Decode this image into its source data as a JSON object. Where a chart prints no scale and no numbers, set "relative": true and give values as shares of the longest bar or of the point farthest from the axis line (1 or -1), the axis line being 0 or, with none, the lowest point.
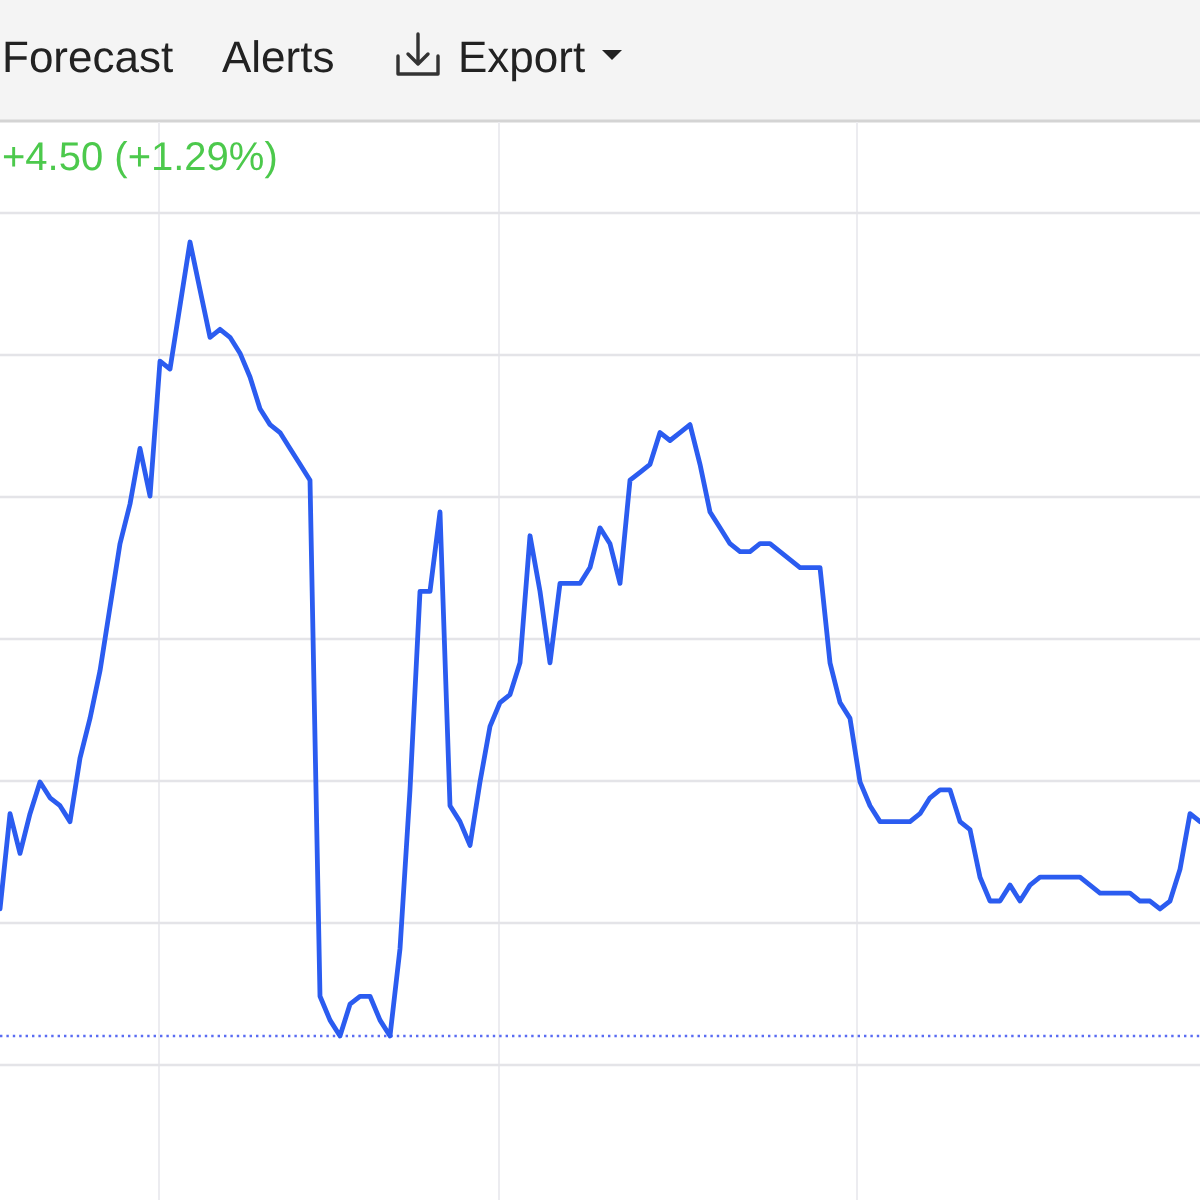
{
  "chart_data": {
    "type": "line",
    "subtitle": "+4.50 (+1.29%)",
    "annotations": [
      "Forecast",
      "Alerts",
      "Export"
    ],
    "relative": true,
    "grid": true,
    "color": "#2b5cf0",
    "categories": [
      null,
      null,
      null,
      null,
      null,
      null,
      null,
      null,
      null,
      null,
      null,
      null,
      null,
      null,
      null,
      null,
      null,
      null,
      null,
      null,
      null,
      null,
      null,
      null,
      null,
      null,
      null,
      null,
      null,
      null,
      null,
      null,
      null,
      null,
      null,
      null,
      null,
      null,
      null,
      null,
      null,
      null,
      null,
      null,
      null,
      null,
      null,
      null,
      null,
      null,
      null,
      null,
      null,
      null,
      null,
      null,
      null,
      null,
      null,
      null,
      null,
      null,
      null,
      null,
      null,
      null,
      null,
      null,
      null,
      null,
      null,
      null,
      null,
      null,
      null,
      null,
      null,
      null,
      null,
      null,
      null,
      null,
      null,
      null,
      null,
      null,
      null,
      null,
      null,
      null,
      null,
      null,
      null,
      null,
      null,
      null,
      null,
      null,
      null,
      null,
      null,
      null,
      null,
      null,
      null,
      null,
      null,
      null,
      null,
      null,
      null,
      null,
      null,
      null,
      null,
      null,
      null,
      null,
      null,
      null,
      null
    ],
    "values": [
      0.16,
      0.28,
      0.23,
      0.28,
      0.32,
      0.3,
      0.29,
      0.27,
      0.35,
      0.4,
      0.46,
      0.54,
      0.62,
      0.67,
      0.74,
      0.68,
      0.85,
      0.84,
      0.92,
      1.0,
      0.94,
      0.88,
      0.89,
      0.88,
      0.86,
      0.83,
      0.79,
      0.77,
      0.76,
      0.74,
      0.72,
      0.7,
      0.05,
      0.02,
      0.0,
      0.04,
      0.05,
      0.05,
      0.02,
      0.0,
      0.11,
      0.31,
      0.56,
      0.56,
      0.66,
      0.29,
      0.27,
      0.24,
      0.32,
      0.39,
      0.42,
      0.43,
      0.47,
      0.63,
      0.56,
      0.47,
      0.57,
      0.57,
      0.57,
      0.59,
      0.64,
      0.62,
      0.57,
      0.7,
      0.71,
      0.72,
      0.76,
      0.75,
      0.76,
      0.77,
      0.72,
      0.66,
      0.64,
      0.62,
      0.61,
      0.61,
      0.62,
      0.62,
      0.61,
      0.6,
      0.59,
      0.59,
      0.59,
      0.47,
      0.42,
      0.4,
      0.32,
      0.29,
      0.27,
      0.27,
      0.27,
      0.27,
      0.28,
      0.3,
      0.31,
      0.31,
      0.27,
      0.26,
      0.2,
      0.17,
      0.17,
      0.19,
      0.17,
      0.19,
      0.2,
      0.2,
      0.2,
      0.2,
      0.2,
      0.19,
      0.18,
      0.18,
      0.18,
      0.18,
      0.17,
      0.17,
      0.16,
      0.17,
      0.21,
      0.28,
      0.27
    ],
    "ref_lines": [
      {
        "axis": "y",
        "value": 0,
        "color": "#5a6cf2",
        "line_style": "dotted"
      }
    ]
  }
}
